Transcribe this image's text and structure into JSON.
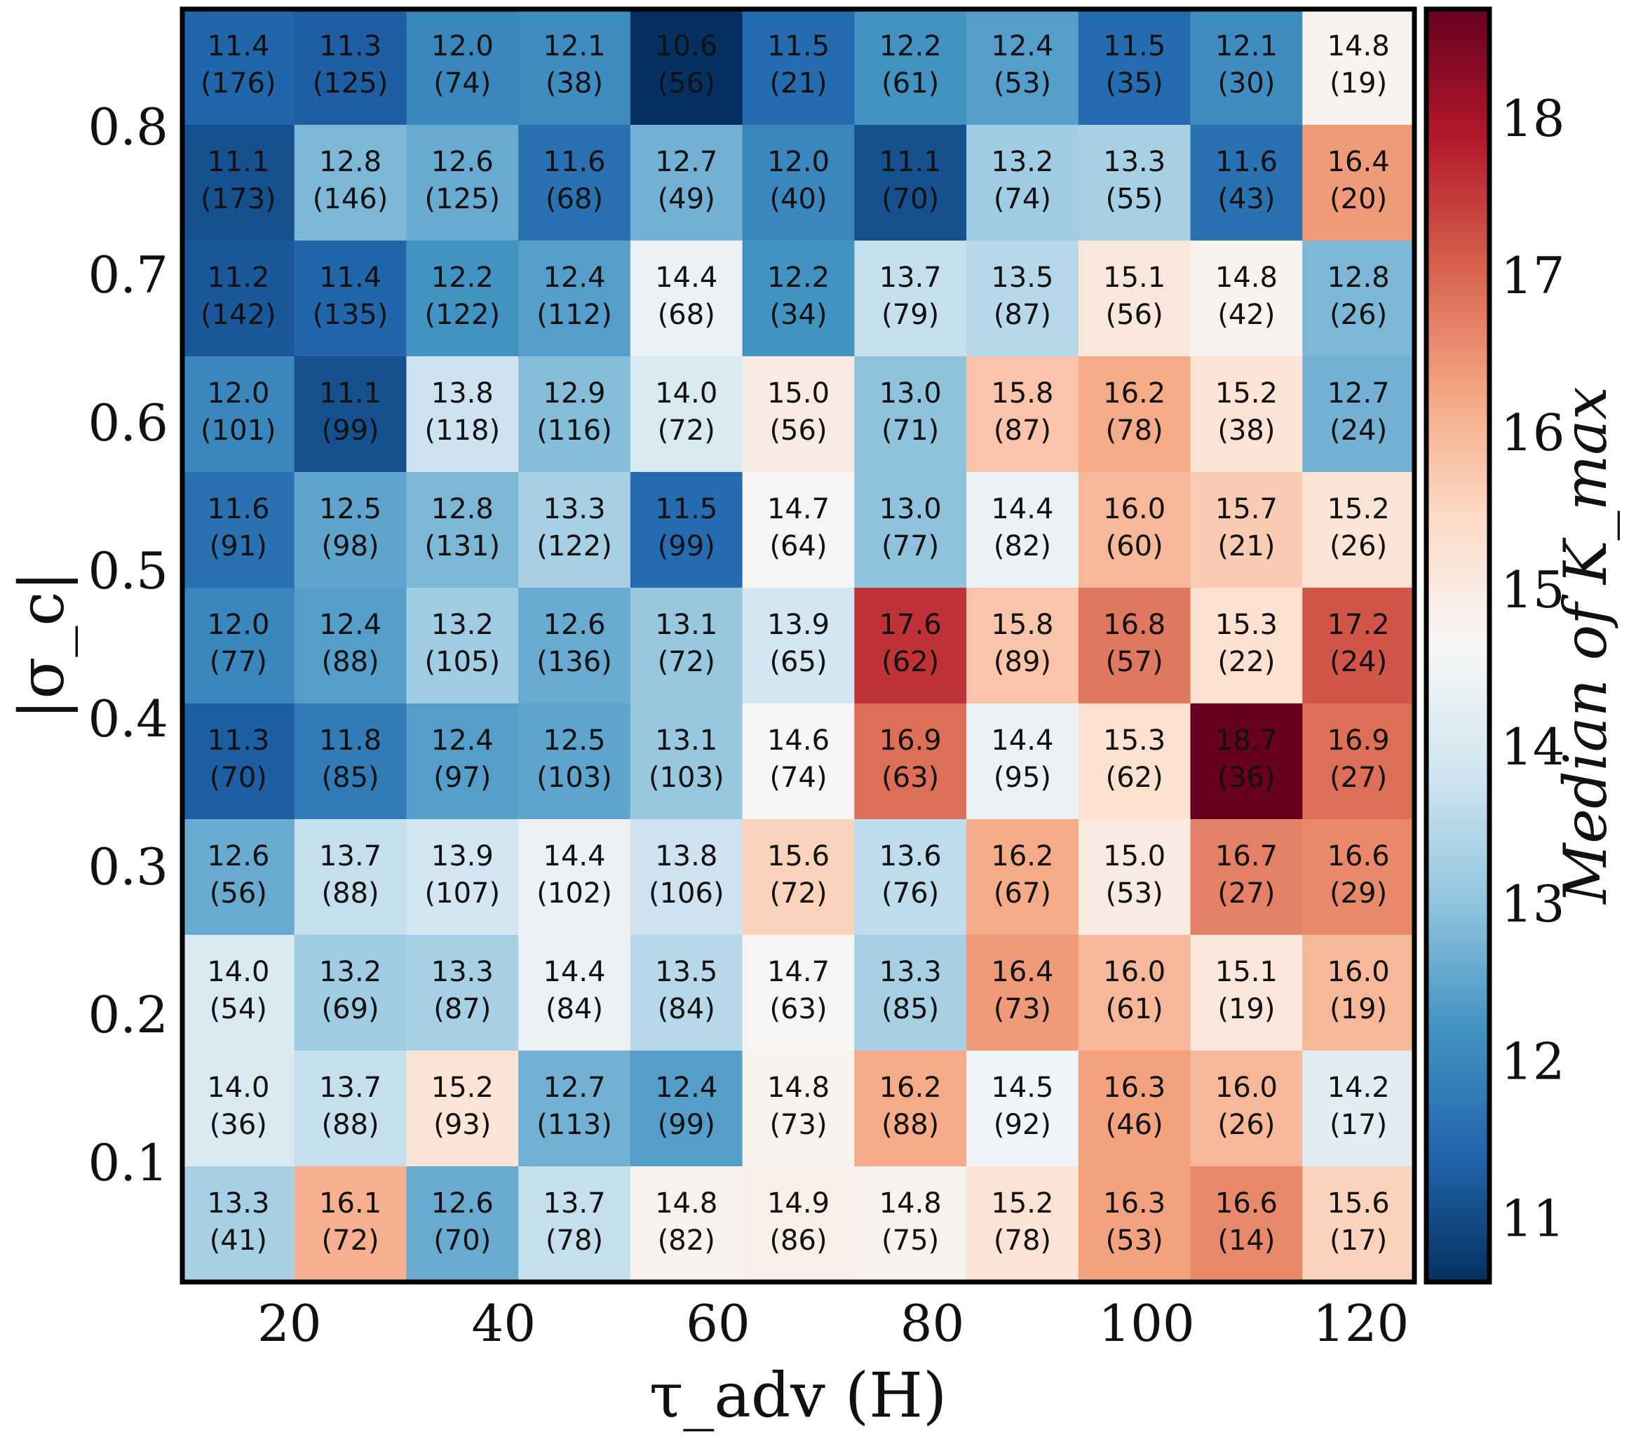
{
  "chart_data": {
    "type": "heatmap",
    "title": "",
    "xlabel": "τ_adv (H)",
    "ylabel": "|σ_c|",
    "colorbar_label": "Median of K_max",
    "x_ticks": [
      "20",
      "40",
      "60",
      "80",
      "100",
      "120"
    ],
    "y_ticks": [
      "0.1",
      "0.2",
      "0.3",
      "0.4",
      "0.5",
      "0.6",
      "0.7",
      "0.8"
    ],
    "colorbar_ticks": [
      "11",
      "12",
      "13",
      "14",
      "15",
      "16",
      "17",
      "18"
    ],
    "colorbar_range": [
      10.6,
      18.7
    ],
    "colormap": "RdBu_r",
    "grid": false,
    "rows_top_to_bottom": [
      {
        "median": [
          11.4,
          11.3,
          12.0,
          12.1,
          10.6,
          11.5,
          12.2,
          12.4,
          11.5,
          12.1,
          14.8
        ],
        "count": [
          176,
          125,
          74,
          38,
          56,
          21,
          61,
          53,
          35,
          30,
          19
        ]
      },
      {
        "median": [
          11.1,
          12.8,
          12.6,
          11.6,
          12.7,
          12.0,
          11.1,
          13.2,
          13.3,
          11.6,
          16.4
        ],
        "count": [
          173,
          146,
          125,
          68,
          49,
          40,
          70,
          74,
          55,
          43,
          20
        ]
      },
      {
        "median": [
          11.2,
          11.4,
          12.2,
          12.4,
          14.4,
          12.2,
          13.7,
          13.5,
          15.1,
          14.8,
          12.8
        ],
        "count": [
          142,
          135,
          122,
          112,
          68,
          34,
          79,
          87,
          56,
          42,
          26
        ]
      },
      {
        "median": [
          12.0,
          11.1,
          13.8,
          12.9,
          14.0,
          15.0,
          13.0,
          15.8,
          16.2,
          15.2,
          12.7
        ],
        "count": [
          101,
          99,
          118,
          116,
          72,
          56,
          71,
          87,
          78,
          38,
          24
        ]
      },
      {
        "median": [
          11.6,
          12.5,
          12.8,
          13.3,
          11.5,
          14.7,
          13.0,
          14.4,
          16.0,
          15.7,
          15.2
        ],
        "count": [
          91,
          98,
          131,
          122,
          99,
          64,
          77,
          82,
          60,
          21,
          26
        ]
      },
      {
        "median": [
          12.0,
          12.4,
          13.2,
          12.6,
          13.1,
          13.9,
          17.6,
          15.8,
          16.8,
          15.3,
          17.2
        ],
        "count": [
          77,
          88,
          105,
          136,
          72,
          65,
          62,
          89,
          57,
          22,
          24
        ]
      },
      {
        "median": [
          11.3,
          11.8,
          12.4,
          12.5,
          13.1,
          14.6,
          16.9,
          14.4,
          15.3,
          18.7,
          16.9
        ],
        "count": [
          70,
          85,
          97,
          103,
          103,
          74,
          63,
          95,
          62,
          36,
          27
        ]
      },
      {
        "median": [
          12.6,
          13.7,
          13.9,
          14.4,
          13.8,
          15.6,
          13.6,
          16.2,
          15.0,
          16.7,
          16.6
        ],
        "count": [
          56,
          88,
          107,
          102,
          106,
          72,
          76,
          67,
          53,
          27,
          29
        ]
      },
      {
        "median": [
          14.0,
          13.2,
          13.3,
          14.4,
          13.5,
          14.7,
          13.3,
          16.4,
          16.0,
          15.1,
          16.0
        ],
        "count": [
          54,
          69,
          87,
          84,
          84,
          63,
          85,
          73,
          61,
          19,
          19
        ]
      },
      {
        "median": [
          14.0,
          13.7,
          15.2,
          12.7,
          12.4,
          14.8,
          16.2,
          14.5,
          16.3,
          16.0,
          14.2
        ],
        "count": [
          36,
          88,
          93,
          113,
          99,
          73,
          88,
          92,
          46,
          26,
          17
        ]
      },
      {
        "median": [
          13.3,
          16.1,
          12.6,
          13.7,
          14.8,
          14.9,
          14.8,
          15.2,
          16.3,
          16.6,
          15.6
        ],
        "count": [
          41,
          72,
          70,
          78,
          82,
          86,
          75,
          78,
          53,
          14,
          17
        ]
      }
    ]
  }
}
